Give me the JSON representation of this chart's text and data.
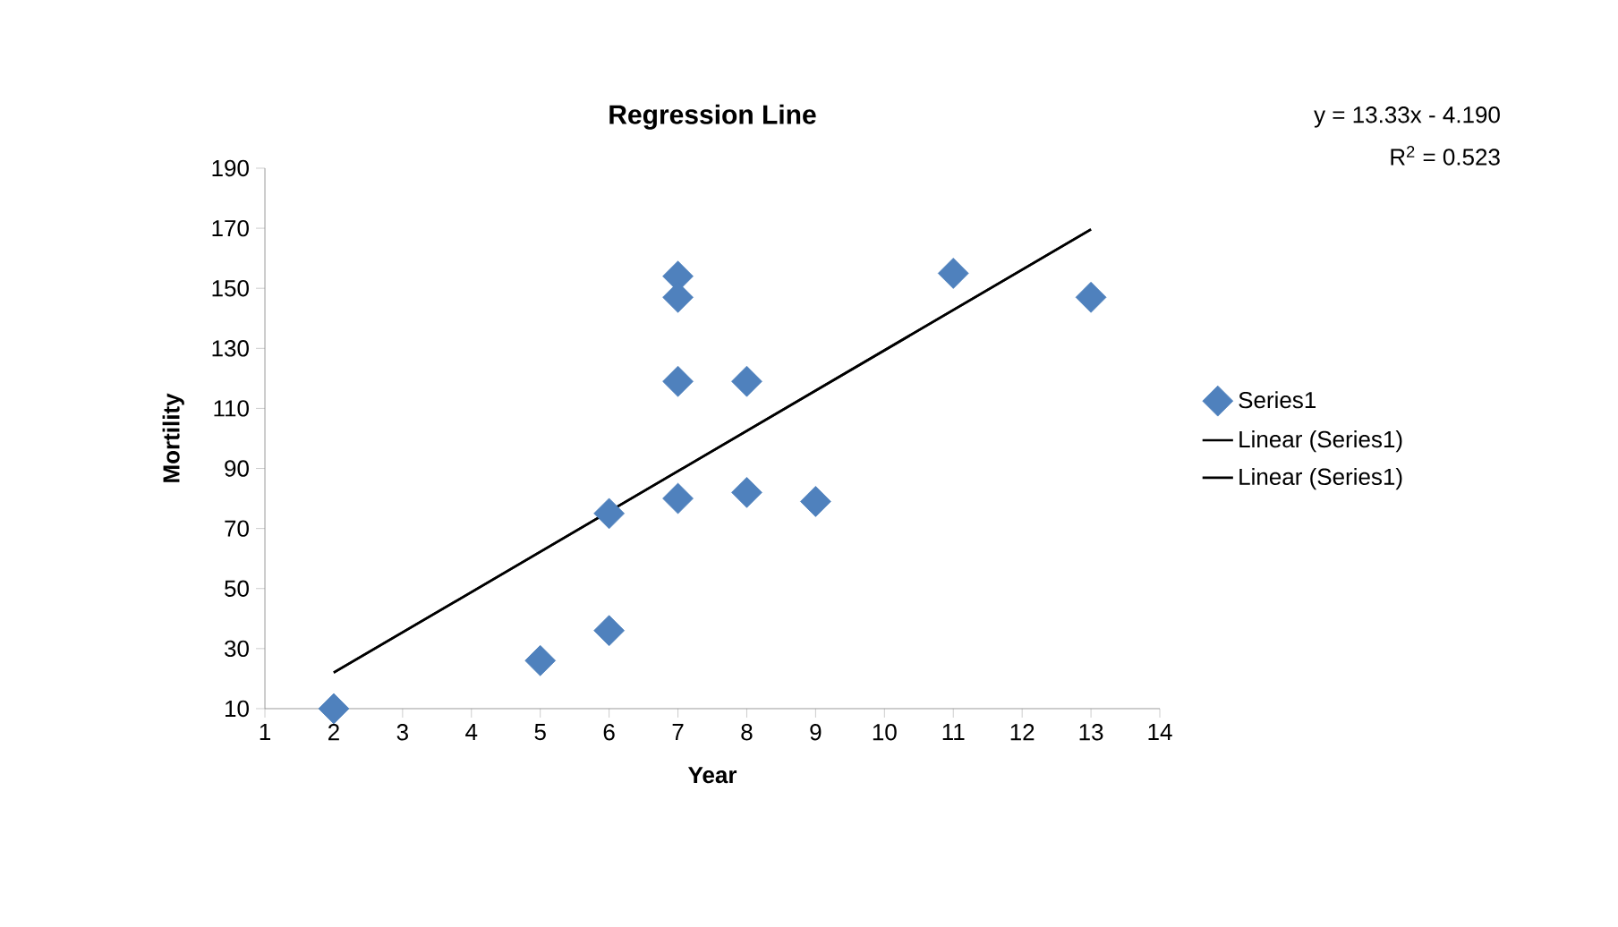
{
  "chart_data": {
    "type": "scatter",
    "title": "Regression Line",
    "xlabel": "Year",
    "ylabel": "Mortility",
    "annotations": [
      "y = 13.33x - 4.190",
      "R$^{2}$ = 0.523"
    ],
    "xlim": [
      1,
      14
    ],
    "xticks": [
      1,
      2,
      3,
      4,
      5,
      6,
      7,
      8,
      9,
      10,
      11,
      12,
      13,
      14
    ],
    "ylim": [
      10,
      190
    ],
    "yticks": [
      10,
      30,
      50,
      70,
      90,
      110,
      130,
      150,
      170,
      190
    ],
    "grid": false,
    "legend": "right",
    "series": [
      {
        "name": "Series1",
        "marker": "diamond",
        "color": "#4f81bd",
        "x": [
          2,
          5,
          6,
          6,
          7,
          7,
          7,
          7,
          8,
          8,
          9,
          11,
          13
        ],
        "values": [
          10,
          26,
          36,
          75,
          154,
          147,
          119,
          80,
          119,
          82,
          79,
          155,
          147
        ]
      },
      {
        "name": "Linear (Series1)",
        "type": "line",
        "color": "#000000",
        "x": [
          2,
          13
        ],
        "values": [
          22,
          169.6
        ]
      },
      {
        "name": "Linear (Series1)",
        "type": "line",
        "color": "#000000",
        "x": [
          2,
          13
        ],
        "values": [
          22,
          169.6
        ]
      }
    ]
  }
}
